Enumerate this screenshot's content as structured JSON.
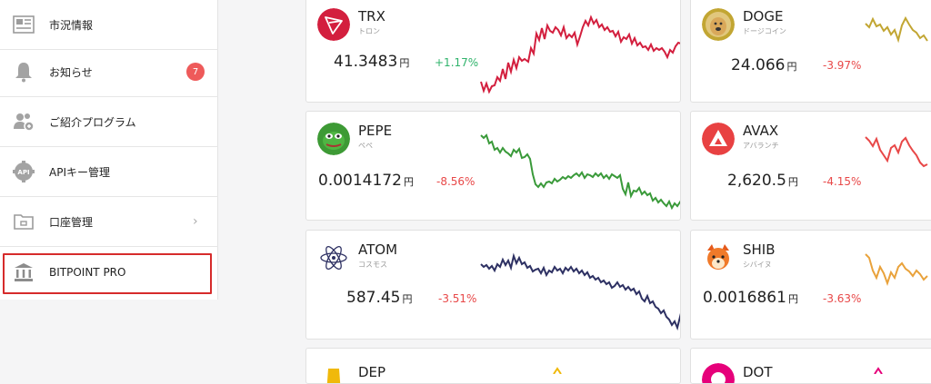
{
  "sidebar": {
    "items": [
      {
        "label": "市況情報",
        "icon": "news-icon"
      },
      {
        "label": "お知らせ",
        "icon": "bell-icon",
        "badge": "7"
      },
      {
        "label": "ご紹介プログラム",
        "icon": "referral-icon"
      },
      {
        "label": "APIキー管理",
        "icon": "api-gear-icon"
      },
      {
        "label": "口座管理",
        "icon": "folder-icon",
        "chevron": "›"
      },
      {
        "label": "BITPOINT PRO",
        "icon": "bank-icon"
      }
    ]
  },
  "coins": [
    {
      "symbol": "TRX",
      "kana": "トロン",
      "price": "41.3483",
      "unit": "円",
      "change": "+1.17%",
      "trend": "up",
      "color": "#d31f3e"
    },
    {
      "symbol": "DOGE",
      "kana": "ドージコイン",
      "price": "24.066",
      "unit": "円",
      "change": "-3.97%",
      "trend": "down",
      "color": "#c2a633"
    },
    {
      "symbol": "PEPE",
      "kana": "ペペ",
      "price": "0.0014172",
      "unit": "円",
      "change": "-8.56%",
      "trend": "down",
      "color": "#3d9a35"
    },
    {
      "symbol": "AVAX",
      "kana": "アバランチ",
      "price": "2,620.5",
      "unit": "円",
      "change": "-4.15%",
      "trend": "down",
      "color": "#e84142"
    },
    {
      "symbol": "ATOM",
      "kana": "コスモス",
      "price": "587.45",
      "unit": "円",
      "change": "-3.51%",
      "trend": "down",
      "color": "#2e3163"
    },
    {
      "symbol": "SHIB",
      "kana": "シバイヌ",
      "price": "0.0016861",
      "unit": "円",
      "change": "-3.63%",
      "trend": "down",
      "color": "#e9a23b"
    },
    {
      "symbol": "DEP",
      "kana": "",
      "price": "",
      "unit": "",
      "change": "",
      "trend": "none",
      "color": "#f0b90b"
    },
    {
      "symbol": "DOT",
      "kana": "",
      "price": "",
      "unit": "",
      "change": "",
      "trend": "none",
      "color": "#e6007a"
    }
  ]
}
